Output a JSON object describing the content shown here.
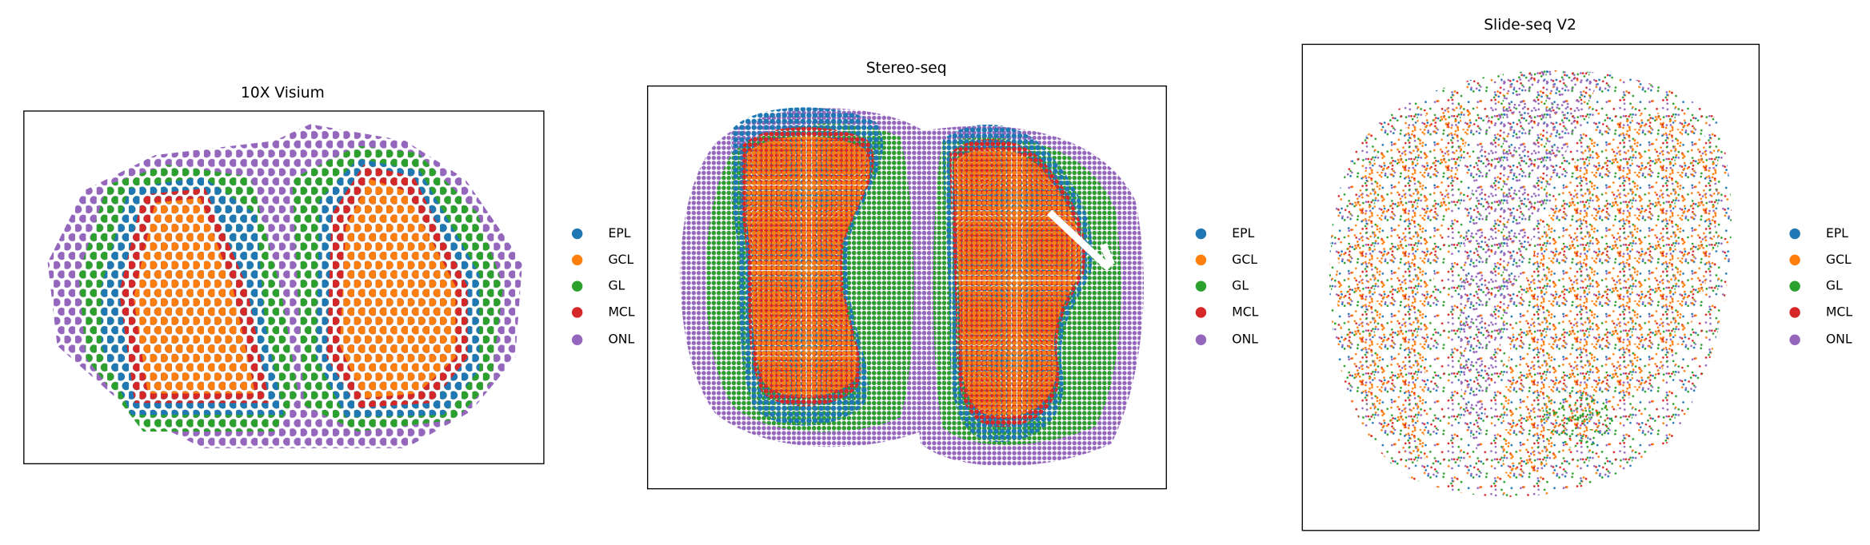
{
  "chart_data": [
    {
      "type": "scatter",
      "title": "10X Visium",
      "series": [
        {
          "name": "EPL",
          "color": "#1f77b4"
        },
        {
          "name": "GCL",
          "color": "#ff7f0e"
        },
        {
          "name": "GL",
          "color": "#2ca02c"
        },
        {
          "name": "MCL",
          "color": "#d62728"
        },
        {
          "name": "ONL",
          "color": "#9467bd"
        }
      ]
    },
    {
      "type": "scatter",
      "title": "Stereo-seq",
      "series": [
        {
          "name": "EPL",
          "color": "#1f77b4"
        },
        {
          "name": "GCL",
          "color": "#ff7f0e"
        },
        {
          "name": "GL",
          "color": "#2ca02c"
        },
        {
          "name": "MCL",
          "color": "#d62728"
        },
        {
          "name": "ONL",
          "color": "#9467bd"
        }
      ]
    },
    {
      "type": "scatter",
      "title": "Slide-seq V2",
      "series": [
        {
          "name": "EPL",
          "color": "#1f77b4"
        },
        {
          "name": "GCL",
          "color": "#ff7f0e"
        },
        {
          "name": "GL",
          "color": "#2ca02c"
        },
        {
          "name": "MCL",
          "color": "#d62728"
        },
        {
          "name": "ONL",
          "color": "#9467bd"
        }
      ]
    }
  ]
}
